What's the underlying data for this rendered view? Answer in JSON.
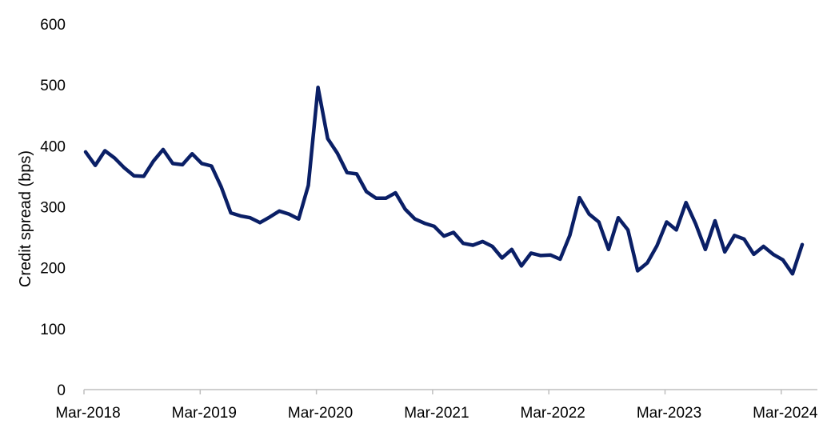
{
  "chart_data": {
    "type": "line",
    "title": "",
    "xlabel": "",
    "ylabel": "Credit spread (bps)",
    "ylim": [
      0,
      600
    ],
    "yticks": [
      0,
      100,
      200,
      300,
      400,
      500,
      600
    ],
    "xtick_labels": [
      "Mar-2018",
      "Mar-2019",
      "Mar-2020",
      "Mar-2021",
      "Mar-2022",
      "Mar-2023",
      "Mar-2024"
    ],
    "x_start": "2018-03",
    "grid": false,
    "legend": "none",
    "line_color": "#0a1f66",
    "series": [
      {
        "values": [
          390,
          368,
          392,
          380,
          364,
          351,
          350,
          375,
          394,
          371,
          369,
          387,
          371,
          367,
          333,
          290,
          285,
          282,
          274,
          283,
          293,
          288,
          280,
          335,
          496,
          412,
          388,
          356,
          354,
          325,
          314,
          314,
          323,
          296,
          280,
          273,
          268,
          252,
          258,
          240,
          237,
          243,
          235,
          216,
          230,
          203,
          224,
          220,
          221,
          214,
          253,
          315,
          288,
          275,
          230,
          282,
          262,
          195,
          208,
          236,
          275,
          262,
          307,
          272,
          230,
          277,
          226,
          253,
          247,
          222,
          235,
          222,
          213,
          190,
          238
        ]
      }
    ]
  }
}
